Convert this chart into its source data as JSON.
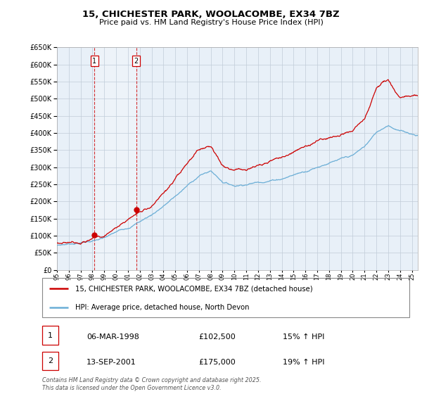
{
  "title": "15, CHICHESTER PARK, WOOLACOMBE, EX34 7BZ",
  "subtitle": "Price paid vs. HM Land Registry's House Price Index (HPI)",
  "legend_line1": "15, CHICHESTER PARK, WOOLACOMBE, EX34 7BZ (detached house)",
  "legend_line2": "HPI: Average price, detached house, North Devon",
  "sale1_label": "1",
  "sale1_date": "06-MAR-1998",
  "sale1_price": "£102,500",
  "sale1_hpi": "15% ↑ HPI",
  "sale2_label": "2",
  "sale2_date": "13-SEP-2001",
  "sale2_price": "£175,000",
  "sale2_hpi": "19% ↑ HPI",
  "footer": "Contains HM Land Registry data © Crown copyright and database right 2025.\nThis data is licensed under the Open Government Licence v3.0.",
  "red_color": "#cc0000",
  "blue_color": "#6baed6",
  "chart_bg": "#e8f0f8",
  "background_color": "#ffffff",
  "grid_color": "#c0ccd8",
  "ylim": [
    0,
    650000
  ],
  "sale1_year": 1998.18,
  "sale2_year": 2001.71,
  "sale1_price_val": 102500,
  "sale2_price_val": 175000,
  "hpi_anchors_x": [
    1995,
    1997,
    1999,
    2001,
    2003,
    2005,
    2007,
    2008,
    2009,
    2010,
    2012,
    2014,
    2016,
    2018,
    2020,
    2021,
    2022,
    2023,
    2024,
    2025.3
  ],
  "hpi_anchors_y": [
    72000,
    82000,
    95000,
    125000,
    165000,
    220000,
    280000,
    295000,
    265000,
    255000,
    270000,
    285000,
    310000,
    340000,
    355000,
    380000,
    420000,
    445000,
    430000,
    420000
  ],
  "prop_anchors_x": [
    1995,
    1997,
    1998.18,
    1999,
    2001.71,
    2003,
    2005,
    2007,
    2008,
    2009,
    2010,
    2012,
    2014,
    2016,
    2018,
    2020,
    2021,
    2022,
    2023,
    2024,
    2025.3
  ],
  "prop_anchors_y": [
    78000,
    90000,
    102500,
    110000,
    175000,
    200000,
    265000,
    340000,
    355000,
    300000,
    290000,
    305000,
    325000,
    360000,
    390000,
    400000,
    430000,
    520000,
    540000,
    490000,
    500000
  ]
}
